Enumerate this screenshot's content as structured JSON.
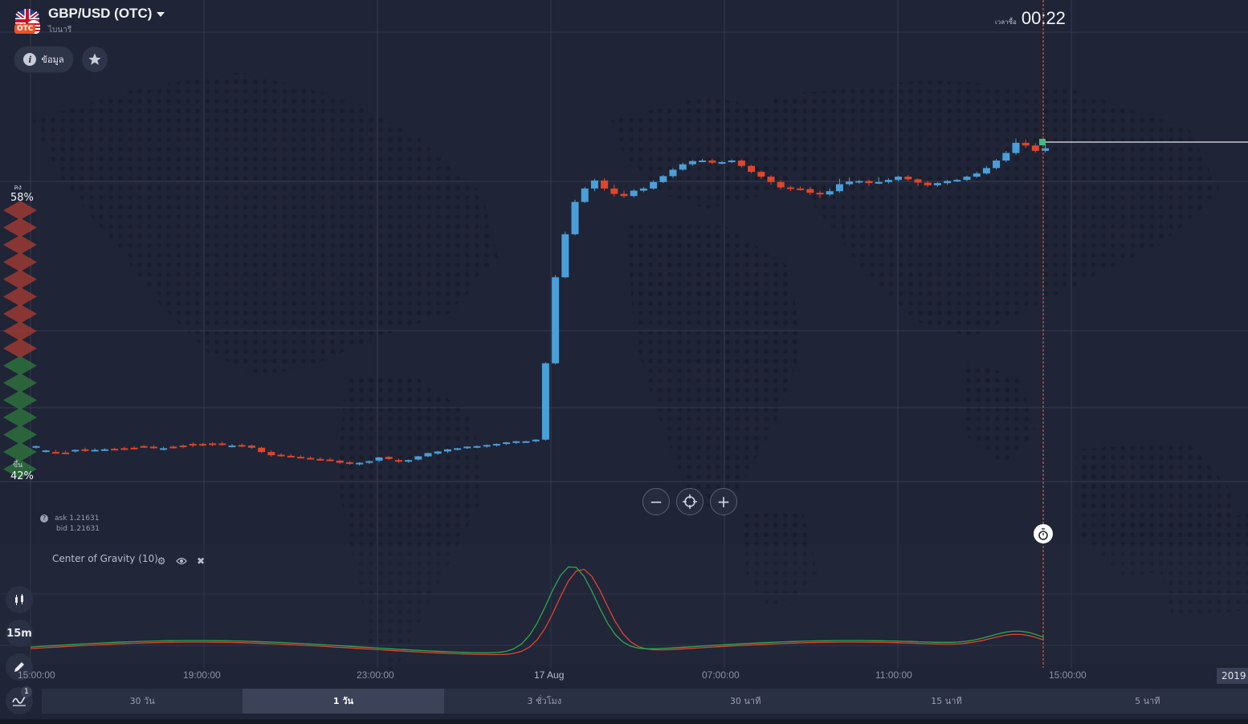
{
  "asset": {
    "title": "GBP/USD (OTC)",
    "subtitle": "ไบนารี",
    "badge": "OTC"
  },
  "toolbar": {
    "info_label": "ข้อมูล",
    "info_icon": "info-icon",
    "favorite_icon": "star-icon"
  },
  "timer": {
    "label": "เวลาซื้อ",
    "value": "00:22"
  },
  "sentiment": {
    "down_label": "ลง",
    "down_pct": "58%",
    "up_label": "ขึ้น",
    "up_pct": "42%"
  },
  "quote": {
    "ask": "ask 1.21631",
    "bid": "bid 1.21631"
  },
  "zoom": {
    "minus": "−",
    "plus": "+",
    "center_icon": "crosshair-icon"
  },
  "indicator": {
    "name": "Center of Gravity (10)",
    "settings_icon": "gear-icon",
    "visibility_icon": "eye-icon",
    "remove_icon": "close-icon"
  },
  "sidebar": {
    "candles_icon": "candlestick-icon",
    "timeframe": "15m",
    "draw_icon": "pencil-icon",
    "indicators_icon": "indicator-wave-icon",
    "indicators_count": "1"
  },
  "time_axis": {
    "labels": [
      "15:00:00",
      "19:00:00",
      "23:00:00",
      "17 Aug",
      "07:00:00",
      "11:00:00",
      "15:00:00"
    ],
    "year": "2019"
  },
  "periods": [
    {
      "label": "30 วัน",
      "active": false
    },
    {
      "label": "1 วัน",
      "active": true
    },
    {
      "label": "3 ชั่วโมง",
      "active": false
    },
    {
      "label": "30 นาที",
      "active": false
    },
    {
      "label": "15 นาที",
      "active": false
    },
    {
      "label": "5 นาที",
      "active": false
    }
  ],
  "colors": {
    "up": "#4a9fd8",
    "down": "#e0452b",
    "cog_green": "#2fa84f",
    "cog_red": "#e0452b",
    "expiry_line": "#e8542c",
    "background": "#1f2436"
  },
  "chart_data": {
    "type": "candlestick",
    "candles": [
      [
        64,
        66,
        62,
        67,
        61
      ],
      [
        56,
        58,
        57,
        59,
        54
      ],
      [
        55,
        54,
        57,
        59,
        52
      ],
      [
        54,
        53,
        56,
        58,
        51
      ],
      [
        57,
        59,
        56,
        60,
        54
      ],
      [
        60,
        57,
        62,
        63,
        55
      ],
      [
        59,
        59,
        61,
        62,
        56
      ],
      [
        59,
        60,
        61,
        62,
        58
      ],
      [
        61,
        60,
        62,
        63,
        58
      ],
      [
        62,
        61,
        64,
        65,
        58
      ],
      [
        63,
        62,
        65,
        66,
        60
      ],
      [
        66,
        65,
        67,
        68,
        63
      ],
      [
        65,
        62,
        67,
        68,
        61
      ],
      [
        62,
        62,
        64,
        65,
        58
      ],
      [
        65,
        64,
        66,
        67,
        61
      ],
      [
        67,
        64,
        68,
        69,
        62
      ],
      [
        70,
        67,
        72,
        73,
        64
      ],
      [
        70,
        68,
        71,
        72,
        66
      ],
      [
        71,
        69,
        72,
        73,
        66
      ],
      [
        71,
        70,
        73,
        74,
        67
      ],
      [
        67,
        67,
        69,
        70,
        64
      ],
      [
        68,
        66,
        70,
        71,
        64
      ],
      [
        67,
        63,
        68,
        69,
        61
      ],
      [
        63,
        55,
        64,
        65,
        53
      ],
      [
        55,
        49,
        57,
        58,
        46
      ],
      [
        50,
        48,
        52,
        53,
        46
      ],
      [
        48,
        46,
        50,
        51,
        45
      ],
      [
        46,
        44,
        48,
        49,
        43
      ],
      [
        44,
        42,
        46,
        47,
        41
      ],
      [
        42,
        40,
        44,
        45,
        39
      ],
      [
        41,
        39,
        43,
        44,
        38
      ],
      [
        39,
        35,
        40,
        41,
        33
      ],
      [
        36,
        33,
        37,
        38,
        31
      ],
      [
        33,
        35,
        34,
        36,
        30
      ],
      [
        35,
        38,
        34,
        39,
        33
      ],
      [
        39,
        45,
        38,
        46,
        36
      ],
      [
        46,
        42,
        47,
        48,
        40
      ],
      [
        40,
        37,
        42,
        43,
        35
      ],
      [
        37,
        40,
        36,
        41,
        35
      ],
      [
        41,
        47,
        40,
        48,
        39
      ],
      [
        47,
        53,
        46,
        54,
        45
      ],
      [
        52,
        56,
        51,
        57,
        50
      ],
      [
        56,
        60,
        55,
        61,
        53
      ],
      [
        60,
        62,
        59,
        63,
        58
      ],
      [
        62,
        65,
        61,
        66,
        60
      ],
      [
        64,
        66,
        63,
        67,
        62
      ],
      [
        66,
        68,
        65,
        69,
        63
      ],
      [
        67,
        70,
        66,
        71,
        65
      ],
      [
        70,
        73,
        69,
        74,
        68
      ],
      [
        73,
        75,
        72,
        76,
        70
      ],
      [
        75,
        75,
        74,
        76,
        72
      ],
      [
        75,
        78,
        74,
        79,
        73
      ],
      [
        78,
        220,
        77,
        222,
        76
      ],
      [
        220,
        380,
        219,
        384,
        218
      ],
      [
        380,
        460,
        379,
        465,
        378
      ],
      [
        460,
        520,
        459,
        524,
        458
      ],
      [
        520,
        545,
        519,
        548,
        518
      ],
      [
        545,
        560,
        544,
        563,
        540
      ],
      [
        560,
        545,
        562,
        564,
        541
      ],
      [
        545,
        535,
        548,
        552,
        530
      ],
      [
        535,
        531,
        538,
        541,
        528
      ],
      [
        531,
        541,
        530,
        544,
        528
      ],
      [
        541,
        545,
        540,
        548,
        538
      ],
      [
        545,
        557,
        544,
        560,
        543
      ],
      [
        557,
        568,
        556,
        570,
        555
      ],
      [
        568,
        580,
        567,
        583,
        565
      ],
      [
        580,
        590,
        579,
        593,
        578
      ],
      [
        590,
        596,
        589,
        598,
        587
      ],
      [
        596,
        597,
        595,
        600,
        594
      ],
      [
        597,
        593,
        598,
        600,
        590
      ],
      [
        593,
        594,
        592,
        596,
        590
      ],
      [
        594,
        597,
        593,
        599,
        592
      ],
      [
        597,
        587,
        598,
        599,
        584
      ],
      [
        587,
        576,
        588,
        589,
        573
      ],
      [
        576,
        567,
        577,
        578,
        563
      ],
      [
        567,
        557,
        568,
        570,
        552
      ],
      [
        557,
        547,
        558,
        560,
        543
      ],
      [
        547,
        545,
        548,
        550,
        540
      ],
      [
        545,
        544,
        547,
        549,
        541
      ],
      [
        544,
        537,
        546,
        548,
        533
      ],
      [
        537,
        534,
        539,
        541,
        528
      ],
      [
        534,
        540,
        533,
        545,
        531
      ],
      [
        540,
        553,
        539,
        563,
        537
      ],
      [
        553,
        558,
        552,
        565,
        550
      ],
      [
        558,
        559,
        557,
        561,
        554
      ],
      [
        559,
        555,
        560,
        562,
        550
      ],
      [
        555,
        557,
        554,
        566,
        553
      ],
      [
        557,
        561,
        556,
        564,
        554
      ],
      [
        561,
        567,
        560,
        569,
        558
      ],
      [
        567,
        562,
        568,
        570,
        559
      ],
      [
        562,
        556,
        563,
        564,
        550
      ],
      [
        556,
        551,
        557,
        559,
        548
      ],
      [
        551,
        555,
        550,
        557,
        548
      ],
      [
        555,
        559,
        554,
        561,
        552
      ],
      [
        559,
        561,
        558,
        563,
        557
      ],
      [
        561,
        567,
        560,
        569,
        559
      ],
      [
        567,
        573,
        566,
        576,
        565
      ],
      [
        573,
        583,
        572,
        587,
        571
      ],
      [
        583,
        597,
        582,
        600,
        580
      ],
      [
        597,
        611,
        596,
        615,
        594
      ],
      [
        611,
        630,
        610,
        638,
        608
      ],
      [
        630,
        625,
        632,
        636,
        620
      ],
      [
        625,
        615,
        627,
        629,
        612
      ],
      [
        615,
        620,
        614,
        627,
        612
      ]
    ],
    "expiry_time": "15:00:00",
    "indicator": "Center of Gravity (10)"
  }
}
